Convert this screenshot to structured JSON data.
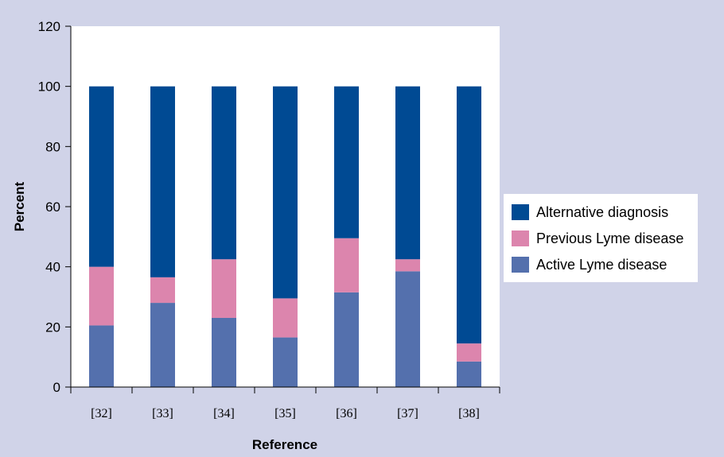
{
  "chart_data": {
    "type": "bar",
    "stacked": true,
    "categories": [
      "[32]",
      "[33]",
      "[34]",
      "[35]",
      "[36]",
      "[37]",
      "[38]"
    ],
    "series": [
      {
        "name": "Active Lyme disease",
        "color": "#5470ad",
        "values": [
          20.5,
          28,
          23,
          16.5,
          31.5,
          38.5,
          8.5
        ]
      },
      {
        "name": "Previous Lyme disease",
        "color": "#dc85ad",
        "values": [
          19.5,
          8.5,
          19.5,
          13,
          18,
          4,
          6
        ]
      },
      {
        "name": "Alternative diagnosis",
        "color": "#004a93",
        "values": [
          60,
          63.5,
          57.5,
          70.5,
          50.5,
          57.5,
          85.5
        ]
      }
    ],
    "xlabel": "Reference",
    "ylabel": "Percent",
    "ylim": [
      0,
      120
    ],
    "yticks": [
      0,
      20,
      40,
      60,
      80,
      100,
      120
    ],
    "legend_order": [
      "Alternative diagnosis",
      "Previous Lyme disease",
      "Active Lyme disease"
    ],
    "legend_position": "right",
    "grid": false
  }
}
